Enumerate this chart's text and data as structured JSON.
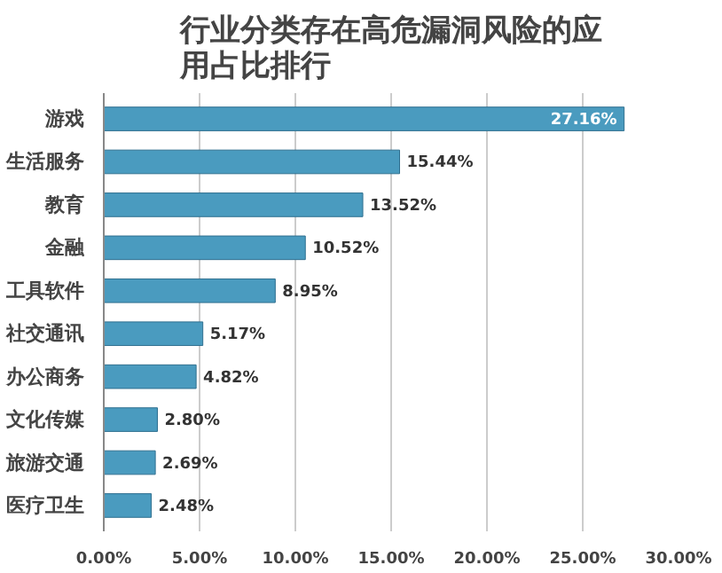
{
  "chart_data": {
    "type": "bar",
    "orientation": "horizontal",
    "title": "行业分类存在高危漏洞风险的应用占比排行",
    "categories": [
      "游戏",
      "生活服务",
      "教育",
      "金融",
      "工具软件",
      "社交通讯",
      "办公商务",
      "文化传媒",
      "旅游交通",
      "医疗卫生"
    ],
    "values": [
      27.16,
      15.44,
      13.52,
      10.52,
      8.95,
      5.17,
      4.82,
      2.8,
      2.69,
      2.48
    ],
    "value_labels": [
      "27.16%",
      "15.44%",
      "13.52%",
      "10.52%",
      "8.95%",
      "5.17%",
      "4.82%",
      "2.80%",
      "2.69%",
      "2.48%"
    ],
    "color": "#4a9bbf",
    "xlim": [
      0,
      30
    ],
    "xticks": [
      {
        "value": 0,
        "label": "0.00%"
      },
      {
        "value": 5,
        "label": "5.00%"
      },
      {
        "value": 10,
        "label": "10.00%"
      },
      {
        "value": 15,
        "label": "15.00%"
      },
      {
        "value": 20,
        "label": "20.00%"
      },
      {
        "value": 25,
        "label": "25.00%"
      },
      {
        "value": 30,
        "label": "30.00%"
      }
    ],
    "grid": "x"
  }
}
